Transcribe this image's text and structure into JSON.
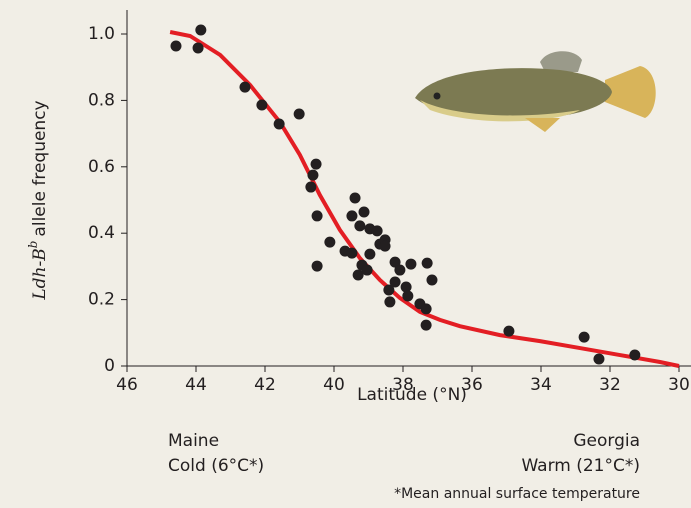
{
  "chart_data": {
    "type": "scatter",
    "xlabel": "Latitude (°N)",
    "ylabel": {
      "gene": "Ldh-B",
      "allele": "b",
      "text": "allele frequency"
    },
    "xlim": [
      46,
      30
    ],
    "xticks": [
      46,
      44,
      42,
      40,
      38,
      36,
      34,
      32,
      30
    ],
    "ylim": [
      0,
      1.05
    ],
    "yticks": [
      0,
      0.2,
      0.4,
      0.6,
      0.8,
      {
        "value": 1,
        "label": "1.0"
      }
    ],
    "points": {
      "color": "#231f20",
      "x": [
        44.58,
        43.94,
        43.86,
        42.58,
        42.09,
        41.59,
        41.01,
        40.52,
        40.61,
        40.67,
        40.49,
        40.49,
        40.12,
        39.68,
        39.48,
        39.39,
        39.48,
        39.13,
        39.25,
        38.96,
        38.75,
        38.67,
        38.52,
        38.96,
        39.19,
        39.04,
        39.3,
        38.52,
        38.23,
        38.09,
        38.41,
        38.38,
        38.23,
        37.91,
        37.86,
        37.77,
        37.51,
        37.33,
        37.33,
        37.3,
        37.16,
        34.93,
        32.75,
        32.32,
        31.28
      ],
      "y": [
        0.964,
        0.958,
        1.012,
        0.84,
        0.786,
        0.729,
        0.759,
        0.608,
        0.575,
        0.539,
        0.452,
        0.301,
        0.373,
        0.346,
        0.34,
        0.506,
        0.452,
        0.464,
        0.422,
        0.413,
        0.407,
        0.367,
        0.38,
        0.337,
        0.304,
        0.289,
        0.274,
        0.361,
        0.313,
        0.289,
        0.229,
        0.193,
        0.253,
        0.238,
        0.211,
        0.307,
        0.187,
        0.172,
        0.123,
        0.31,
        0.259,
        0.105,
        0.087,
        0.021,
        0.033
      ]
    },
    "curve": {
      "type": "line",
      "color": "#e31e24",
      "x": [
        44.75,
        44.17,
        43.3,
        42.43,
        41.57,
        40.99,
        40.41,
        39.83,
        39.25,
        38.67,
        38.09,
        37.51,
        36.93,
        36.35,
        35.19,
        34.03,
        32.87,
        31.71,
        30.55,
        30
      ],
      "y": [
        1.006,
        0.994,
        0.937,
        0.846,
        0.735,
        0.636,
        0.515,
        0.41,
        0.325,
        0.259,
        0.205,
        0.163,
        0.139,
        0.12,
        0.093,
        0.075,
        0.054,
        0.033,
        0.012,
        0
      ]
    },
    "annotations": {
      "north": "Maine",
      "north_temp": "Cold (6°C*)",
      "south": "Georgia",
      "south_temp": "Warm (21°C*)",
      "footnote": "*Mean annual surface temperature"
    }
  }
}
